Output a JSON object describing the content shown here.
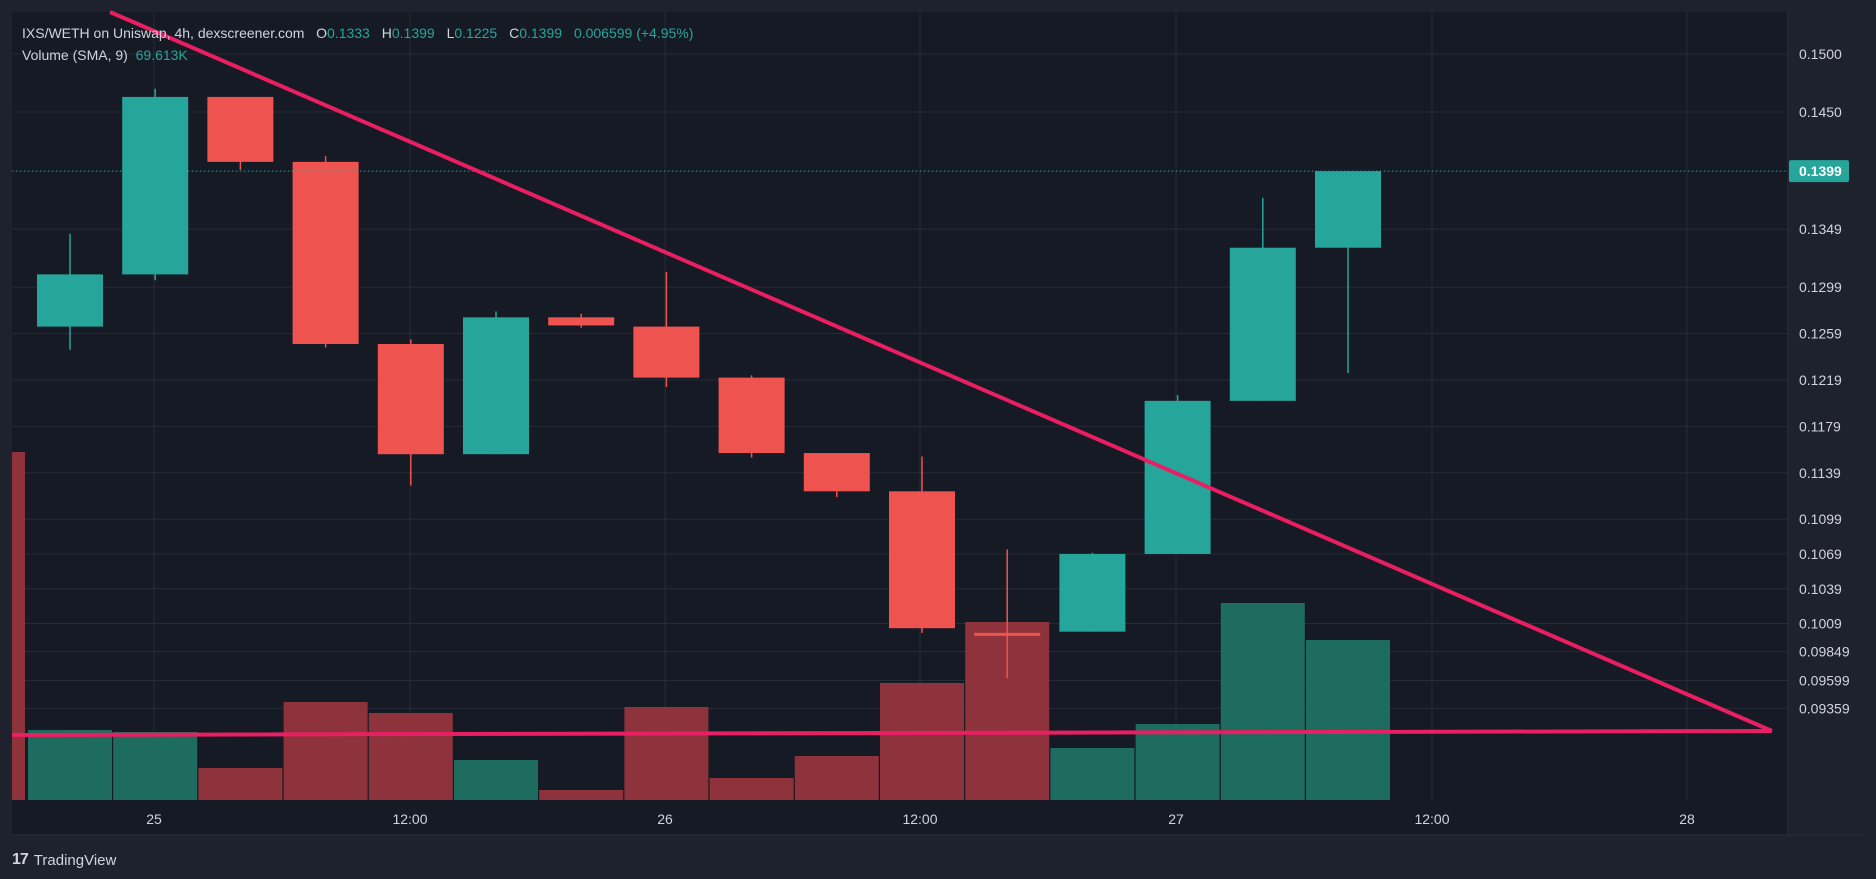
{
  "legend": {
    "symbol": "IXS/WETH on Uniswap, 4h, dexscreener.com",
    "o_label": "O",
    "o_value": "0.1333",
    "h_label": "H",
    "h_value": "0.1399",
    "l_label": "L",
    "l_value": "0.1225",
    "c_label": "C",
    "c_value": "0.1399",
    "change": "0.006599 (+4.95%)",
    "volume_label": "Volume (SMA, 9)",
    "volume_value": "69.613K"
  },
  "brand": {
    "logo": "17",
    "name": "TradingView"
  },
  "colors": {
    "background": "#161a25",
    "up": "#26a69a",
    "down": "#ef5350",
    "vol_up": "#1e6b5f",
    "vol_down": "#8e333b",
    "trendline": "#e91e63",
    "grid": "#262b38",
    "text": "#d1d4dc"
  },
  "chart_data": {
    "type": "candlestick",
    "price_axis_ticks": [
      "0.1500",
      "0.1450",
      "0.1399",
      "0.1349",
      "0.1299",
      "0.1259",
      "0.1219",
      "0.1179",
      "0.1139",
      "0.1099",
      "0.1069",
      "0.1039",
      "0.1009",
      "0.09849",
      "0.09599",
      "0.09359"
    ],
    "time_axis_ticks": [
      "25",
      "12:00",
      "26",
      "12:00",
      "27",
      "12:00",
      "28"
    ],
    "last_price_label": "0.1399",
    "candles": [
      {
        "o": 0.1265,
        "h": 0.1345,
        "l": 0.1245,
        "c": 0.131
      },
      {
        "o": 0.131,
        "h": 0.147,
        "l": 0.1305,
        "c": 0.1463
      },
      {
        "o": 0.1463,
        "h": 0.1463,
        "l": 0.14,
        "c": 0.1407
      },
      {
        "o": 0.1407,
        "h": 0.1412,
        "l": 0.1247,
        "c": 0.125
      },
      {
        "o": 0.125,
        "h": 0.1254,
        "l": 0.1128,
        "c": 0.1155
      },
      {
        "o": 0.1155,
        "h": 0.1278,
        "l": 0.1155,
        "c": 0.1273
      },
      {
        "o": 0.1273,
        "h": 0.1276,
        "l": 0.1264,
        "c": 0.1266
      },
      {
        "o": 0.1265,
        "h": 0.1312,
        "l": 0.1213,
        "c": 0.1221
      },
      {
        "o": 0.1221,
        "h": 0.1223,
        "l": 0.1152,
        "c": 0.1156
      },
      {
        "o": 0.1156,
        "h": 0.1156,
        "l": 0.1118,
        "c": 0.1123
      },
      {
        "o": 0.1123,
        "h": 0.1153,
        "l": 0.1001,
        "c": 0.1005
      },
      {
        "o": 0.1001,
        "h": 0.1073,
        "l": 0.0962,
        "c": 0.0999
      },
      {
        "o": 0.1002,
        "h": 0.107,
        "l": 0.1002,
        "c": 0.1069
      },
      {
        "o": 0.1069,
        "h": 0.1206,
        "l": 0.1069,
        "c": 0.1201
      },
      {
        "o": 0.1201,
        "h": 0.1376,
        "l": 0.1201,
        "c": 0.1333
      },
      {
        "o": 0.1333,
        "h": 0.1399,
        "l": 0.1225,
        "c": 0.1399
      }
    ],
    "volume": [
      {
        "v": 70,
        "dir": "up"
      },
      {
        "v": 68,
        "dir": "up"
      },
      {
        "v": 32,
        "dir": "down"
      },
      {
        "v": 98,
        "dir": "down"
      },
      {
        "v": 87,
        "dir": "down"
      },
      {
        "v": 40,
        "dir": "up"
      },
      {
        "v": 10,
        "dir": "down"
      },
      {
        "v": 93,
        "dir": "down"
      },
      {
        "v": 22,
        "dir": "down"
      },
      {
        "v": 44,
        "dir": "down"
      },
      {
        "v": 117,
        "dir": "down"
      },
      {
        "v": 178,
        "dir": "down"
      },
      {
        "v": 52,
        "dir": "up"
      },
      {
        "v": 76,
        "dir": "up"
      },
      {
        "v": 197,
        "dir": "up"
      },
      {
        "v": 160,
        "dir": "up"
      }
    ]
  }
}
